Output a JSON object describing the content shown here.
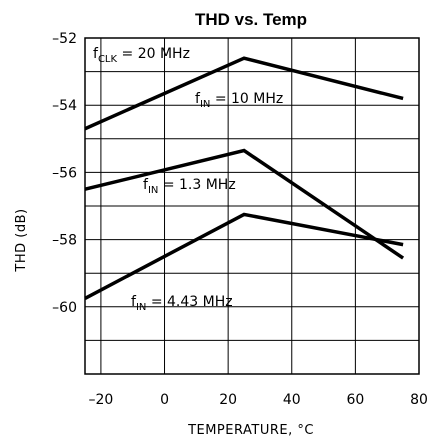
{
  "chart_data": {
    "type": "line",
    "title": "THD vs. Temp",
    "xlabel": "TEMPERATURE, °C",
    "ylabel": "THD (dB)",
    "xlim": [
      -25,
      80
    ],
    "ylim": [
      -62,
      -52
    ],
    "grid": true,
    "x_ticks": [
      -20,
      0,
      20,
      40,
      60,
      80
    ],
    "y_ticks": [
      -52,
      -54,
      -56,
      -58,
      -60
    ],
    "condition": {
      "prefix": "f",
      "sub": "CLK",
      "value": "= 20 MHz"
    },
    "series": [
      {
        "label_prefix": "f",
        "label_sub": "IN",
        "label_value": " =  10 MHz",
        "x": [
          -25,
          25,
          75
        ],
        "y": [
          -54.7,
          -52.6,
          -53.8
        ]
      },
      {
        "label_prefix": "f",
        "label_sub": "IN",
        "label_value": " =  1.3 MHz",
        "x": [
          -25,
          25,
          75
        ],
        "y": [
          -56.5,
          -55.35,
          -58.55
        ]
      },
      {
        "label_prefix": "f",
        "label_sub": "IN",
        "label_value": " =  4.43 MHz",
        "x": [
          -25,
          25,
          75
        ],
        "y": [
          -59.75,
          -57.25,
          -58.15
        ]
      }
    ]
  }
}
